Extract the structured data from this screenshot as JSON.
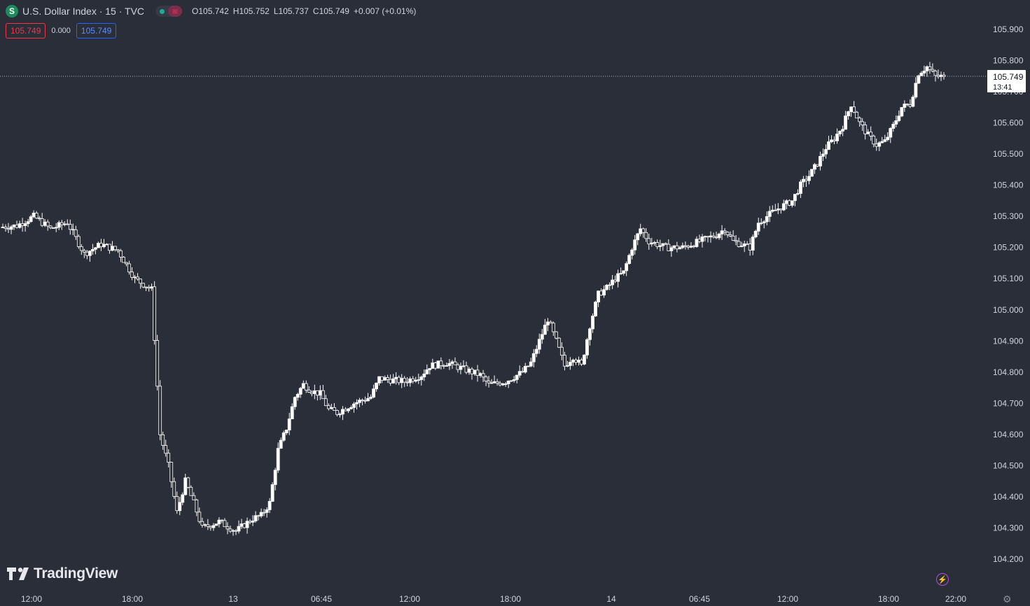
{
  "header": {
    "symbol_icon": "S",
    "title": "U.S. Dollar Index · 15 · TVC",
    "status_icons": [
      "market-open-dot-icon",
      "data-delay-icon"
    ],
    "ohlc": {
      "open_label": "O",
      "open": "105.742",
      "high_label": "H",
      "high": "105.752",
      "low_label": "L",
      "low": "105.737",
      "close_label": "C",
      "close": "105.749",
      "change": "+0.007 (+0.01%)"
    },
    "sell_price": "105.749",
    "spread": "0.000",
    "buy_price": "105.749"
  },
  "footer": {
    "brand": "TradingView",
    "icons": [
      "tradingview-logo-icon",
      "lightning-icon",
      "settings-gear-icon"
    ]
  },
  "colors": {
    "background": "#2a2e39",
    "candle": "#ffffff",
    "text": "#d1d4dc",
    "sell": "#f23645",
    "buy": "#2962ff"
  },
  "chart_data": {
    "type": "candlestick",
    "interval_minutes": 15,
    "y_axis": {
      "ticks": [
        "105.900",
        "105.800",
        "105.700",
        "105.600",
        "105.500",
        "105.400",
        "105.300",
        "105.200",
        "105.100",
        "105.000",
        "104.900",
        "104.800",
        "104.700",
        "104.600",
        "104.500",
        "104.400",
        "104.300",
        "104.200"
      ],
      "range": [
        104.16,
        105.97
      ]
    },
    "x_axis": {
      "ticks": [
        "12:00",
        "18:00",
        "13",
        "06:45",
        "12:00",
        "18:00",
        "14",
        "06:45",
        "12:00",
        "18:00",
        "22:00"
      ]
    },
    "last_price": {
      "value": "105.749",
      "countdown": "13:41"
    },
    "price_path": [
      [
        0,
        105.265
      ],
      [
        2,
        105.27
      ],
      [
        4,
        105.3
      ],
      [
        6,
        105.26
      ],
      [
        8,
        105.28
      ],
      [
        10,
        105.18
      ],
      [
        12,
        105.21
      ],
      [
        14,
        105.19
      ],
      [
        16,
        105.1
      ],
      [
        18,
        105.065
      ],
      [
        19,
        104.6
      ],
      [
        20,
        104.5
      ],
      [
        21,
        104.35
      ],
      [
        22,
        104.45
      ],
      [
        23,
        104.38
      ],
      [
        24,
        104.3
      ],
      [
        26,
        104.32
      ],
      [
        28,
        104.29
      ],
      [
        30,
        104.33
      ],
      [
        31,
        104.34
      ],
      [
        32,
        104.38
      ],
      [
        33,
        104.55
      ],
      [
        34,
        104.62
      ],
      [
        35,
        104.72
      ],
      [
        36,
        104.76
      ],
      [
        37,
        104.74
      ],
      [
        38,
        104.73
      ],
      [
        39,
        104.68
      ],
      [
        40,
        104.67
      ],
      [
        42,
        104.7
      ],
      [
        44,
        104.72
      ],
      [
        45,
        104.78
      ],
      [
        48,
        104.77
      ],
      [
        50,
        104.79
      ],
      [
        51,
        104.82
      ],
      [
        53,
        104.83
      ],
      [
        55,
        104.81
      ],
      [
        57,
        104.79
      ],
      [
        58,
        104.76
      ],
      [
        60,
        104.77
      ],
      [
        62,
        104.8
      ],
      [
        63,
        104.83
      ],
      [
        64,
        104.9
      ],
      [
        65,
        104.97
      ],
      [
        66,
        104.9
      ],
      [
        67,
        104.82
      ],
      [
        68,
        104.85
      ],
      [
        69,
        104.82
      ],
      [
        70,
        104.95
      ],
      [
        71,
        105.05
      ],
      [
        72,
        105.07
      ],
      [
        73,
        105.1
      ],
      [
        74,
        105.12
      ],
      [
        75,
        105.2
      ],
      [
        76,
        105.26
      ],
      [
        77,
        105.22
      ],
      [
        79,
        105.2
      ],
      [
        81,
        105.2
      ],
      [
        83,
        105.22
      ],
      [
        85,
        105.24
      ],
      [
        86,
        105.26
      ],
      [
        87,
        105.22
      ],
      [
        89,
        105.2
      ],
      [
        90,
        105.28
      ],
      [
        92,
        105.32
      ],
      [
        94,
        105.35
      ],
      [
        95,
        105.4
      ],
      [
        96,
        105.43
      ],
      [
        97,
        105.47
      ],
      [
        98,
        105.52
      ],
      [
        99,
        105.55
      ],
      [
        100,
        105.59
      ],
      [
        101,
        105.66
      ],
      [
        102,
        105.6
      ],
      [
        103,
        105.56
      ],
      [
        104,
        105.53
      ],
      [
        105,
        105.54
      ],
      [
        106,
        105.59
      ],
      [
        107,
        105.65
      ],
      [
        108,
        105.66
      ],
      [
        109,
        105.76
      ],
      [
        110,
        105.78
      ],
      [
        111,
        105.749
      ]
    ]
  }
}
